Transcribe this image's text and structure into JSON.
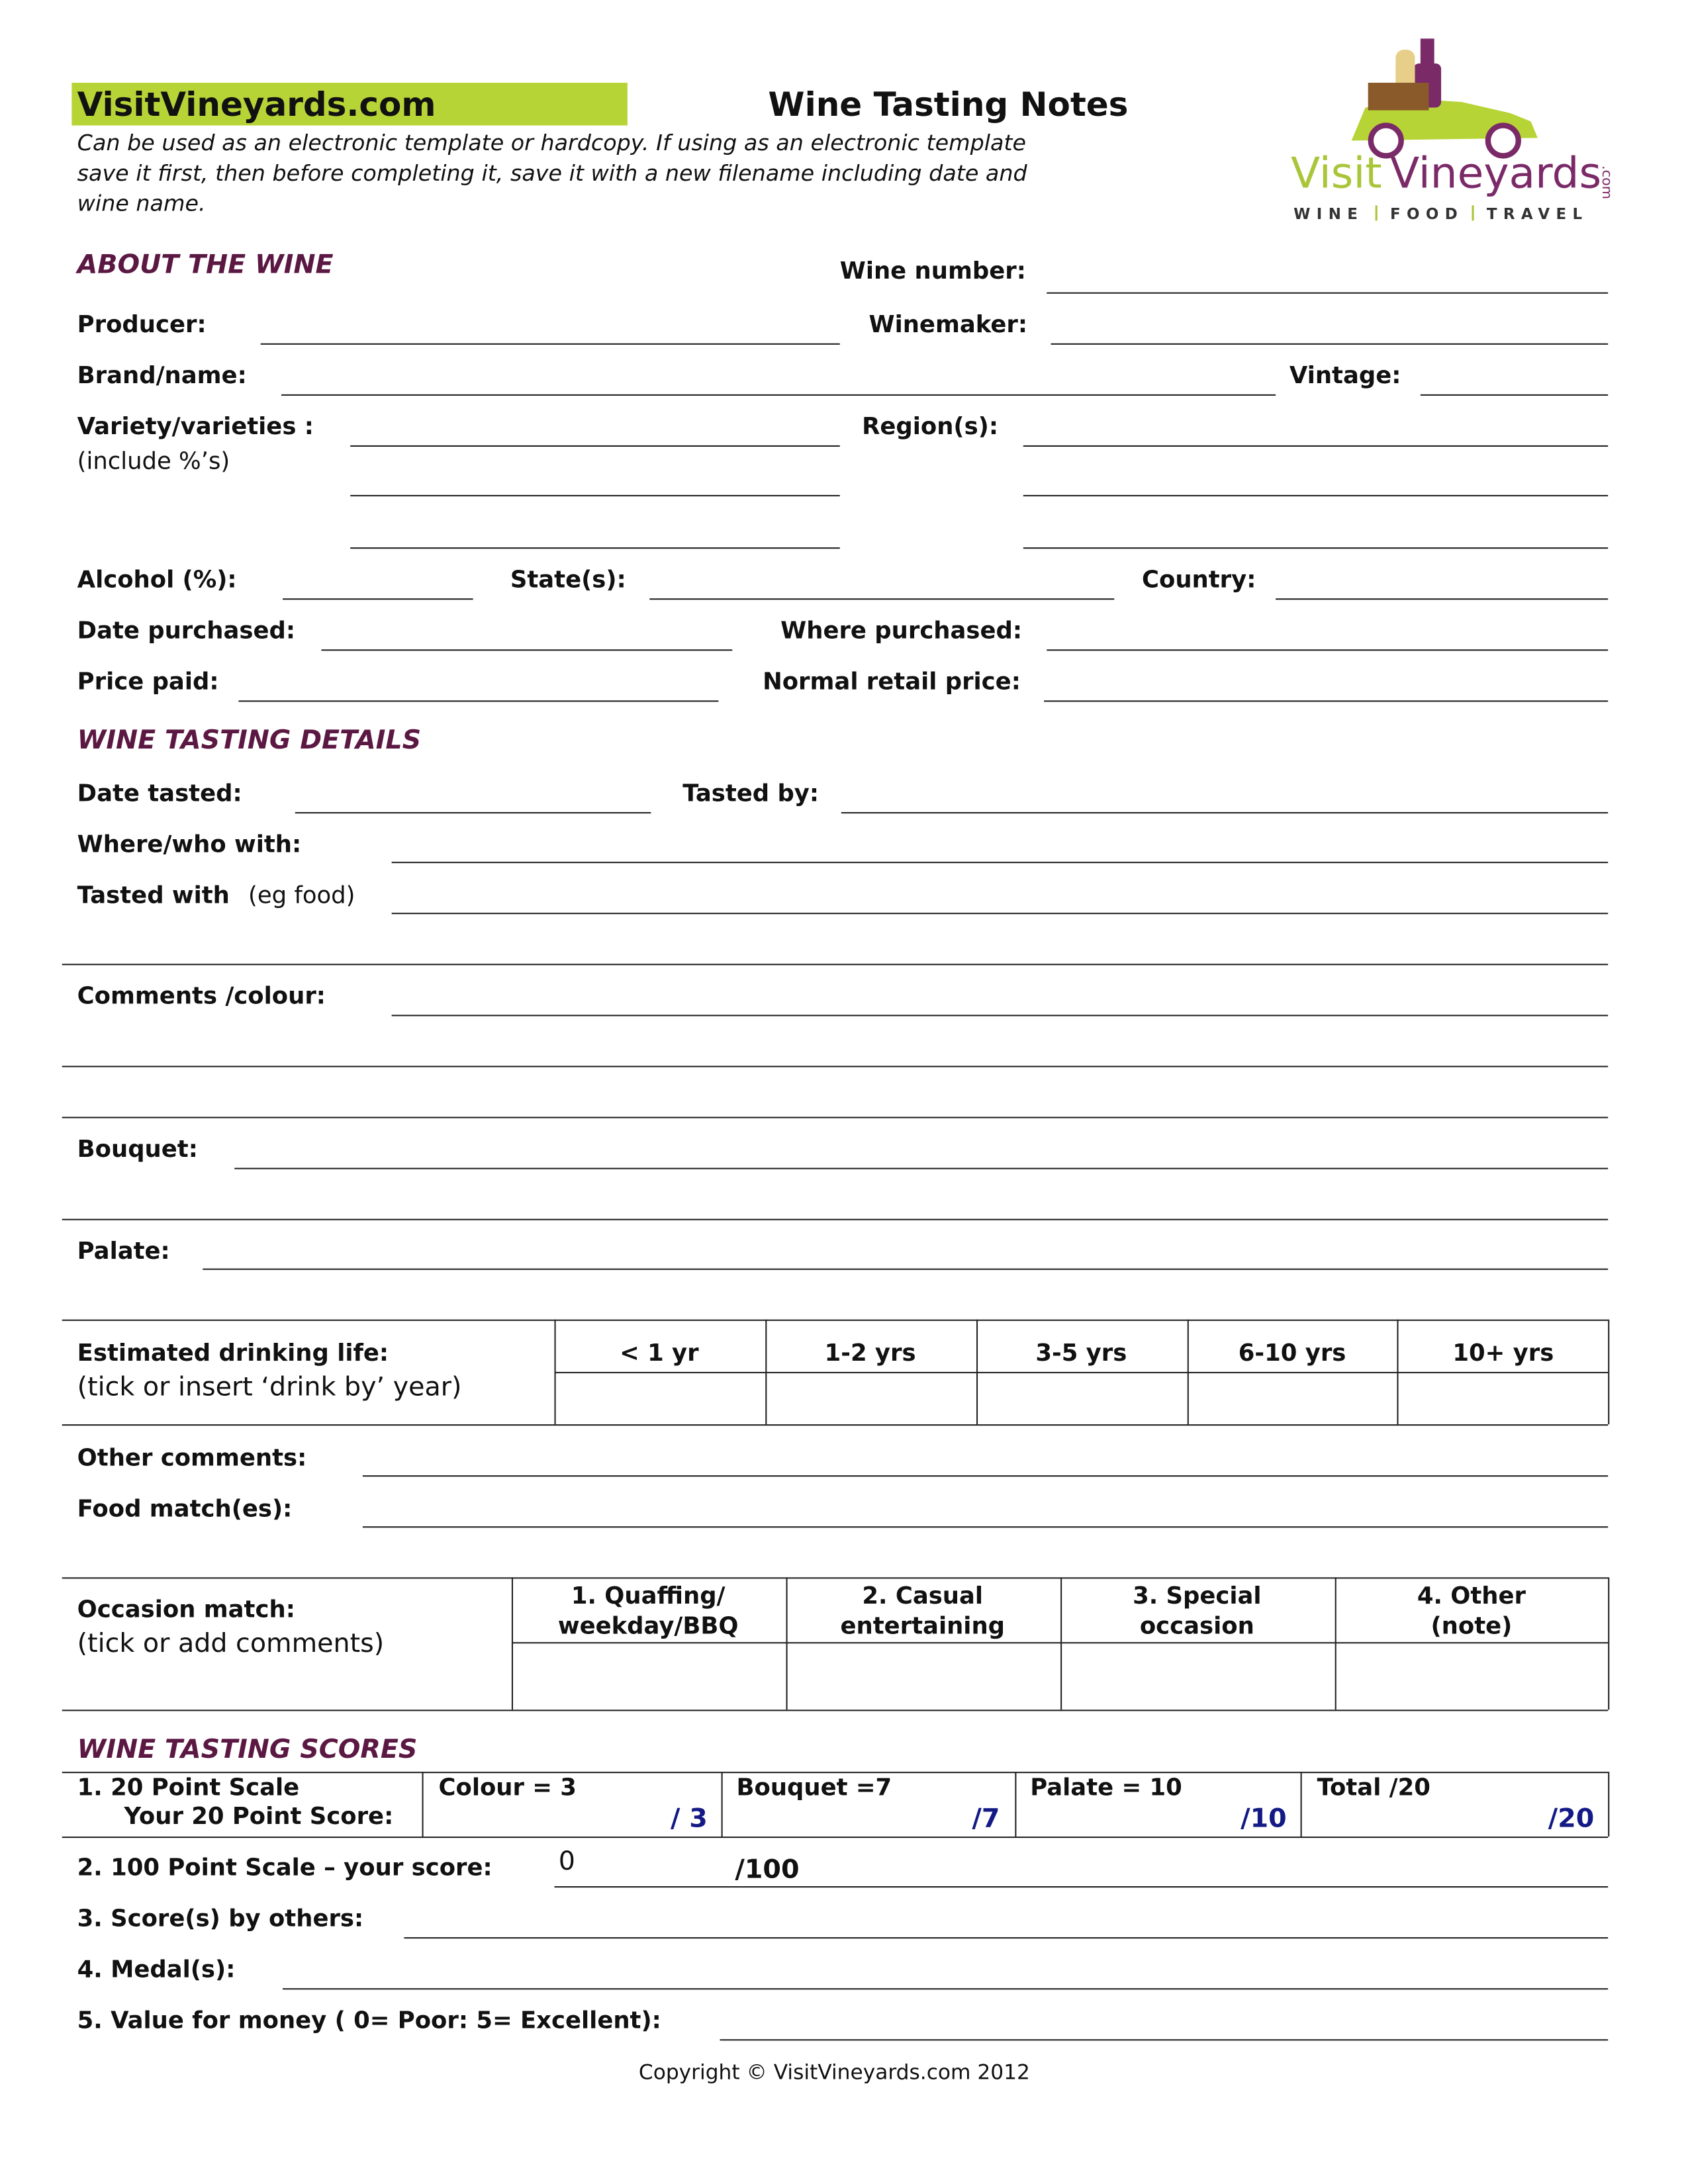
{
  "header": {
    "site_name": "VisitVineyards.com",
    "title": "Wine Tasting Notes",
    "instructions": [
      "Can be used as an electronic template or hardcopy. If using as an electronic template",
      "save it first, then before completing it, save it with a new filename including date and",
      "wine name."
    ]
  },
  "logo": {
    "name_part1": "Visit",
    "name_part2": "Vineyards",
    "suffix": ".com",
    "tagline": [
      "WINE",
      "FOOD",
      "TRAVEL"
    ]
  },
  "about": {
    "heading": "ABOUT THE WINE",
    "wine_number": "Wine number:",
    "producer": "Producer:",
    "winemaker": "Winemaker:",
    "brand": "Brand/name:",
    "vintage": "Vintage:",
    "variety": "Variety/varieties :",
    "variety_note": "(include %’s)",
    "region": "Region(s):",
    "alcohol": "Alcohol (%):",
    "state": "State(s):",
    "country": "Country:",
    "date_purchased": "Date purchased:",
    "where_purchased": "Where purchased:",
    "price_paid": "Price paid:",
    "normal_price": "Normal retail price:"
  },
  "tasting": {
    "heading": "WINE TASTING DETAILS",
    "date_tasted": "Date tasted:",
    "tasted_by": "Tasted by:",
    "where_who": "Where/who with:",
    "tasted_with": "Tasted with",
    "tasted_with_note": "(eg food)",
    "comments": "Comments /colour:",
    "bouquet": "Bouquet:",
    "palate": "Palate:"
  },
  "drinking_life": {
    "label": "Estimated drinking life:",
    "note": "(tick or insert  ‘drink by’ year)",
    "columns": [
      "< 1 yr",
      "1-2 yrs",
      "3-5 yrs",
      "6-10 yrs",
      "10+ yrs"
    ]
  },
  "other_comments": "Other comments:",
  "food_match": "Food match(es):",
  "occasion": {
    "label": "Occasion match:",
    "note": "(tick or add comments)",
    "columns": [
      [
        "1. Quaffing/",
        "weekday/BBQ"
      ],
      [
        "2. Casual",
        "entertaining"
      ],
      [
        "3. Special",
        "occasion"
      ],
      [
        "4. Other",
        "(note)"
      ]
    ]
  },
  "scores": {
    "heading": "WINE TASTING SCORES",
    "scale_20": "1. 20 Point Scale",
    "your_20": "Your 20 Point Score:",
    "cells": [
      {
        "label": "Colour = 3",
        "max": "/ 3"
      },
      {
        "label": "Bouquet =7",
        "max": "/7"
      },
      {
        "label": "Palate = 10",
        "max": "/10"
      },
      {
        "label": "Total /20",
        "max": "/20"
      }
    ],
    "scale_100": "2. 100 Point Scale – your score:",
    "score_100": "0",
    "max_100": "/100",
    "others": "3. Score(s) by others:",
    "medals": "4. Medal(s):",
    "value": "5. Value for money ( 0= Poor: 5= Excellent):"
  },
  "footer": "Copyright © VisitVineyards.com 2012"
}
